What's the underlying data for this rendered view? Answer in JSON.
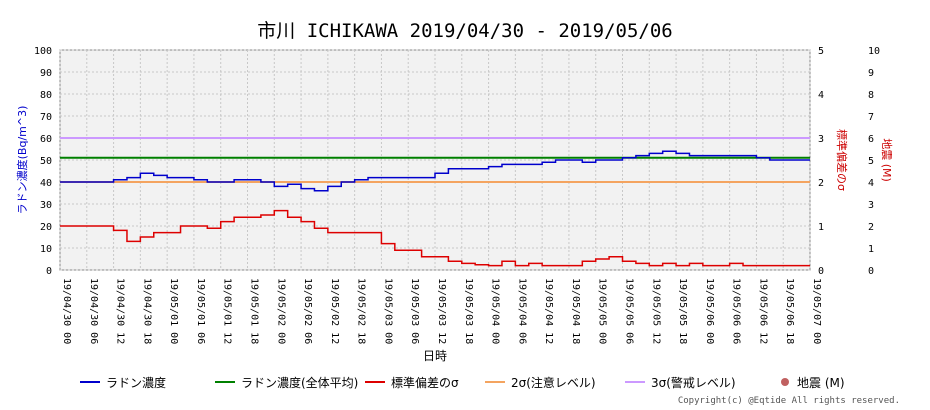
{
  "chart_data": {
    "type": "line",
    "title": "市川 ICHIKAWA 2019/04/30 - 2019/05/06",
    "xlabel": "日時",
    "ylabel_left": "ラドン濃度(Bq/m^3)",
    "ylabel_right1": "標準偏差のσ",
    "ylabel_right2": "地震 (M)",
    "ylim_left": [
      0,
      100
    ],
    "ylim_right1": [
      0,
      5
    ],
    "ylim_right2": [
      0,
      10
    ],
    "yticks_left": [
      "0",
      "10",
      "20",
      "30",
      "40",
      "50",
      "60",
      "70",
      "80",
      "90",
      "100"
    ],
    "yticks_right1": [
      "0",
      "1",
      "2",
      "3",
      "4",
      "5"
    ],
    "yticks_right2": [
      "0",
      "1",
      "2",
      "3",
      "4",
      "5",
      "6",
      "7",
      "8",
      "9",
      "10"
    ],
    "xticks": [
      "19/04/30 00",
      "19/04/30 06",
      "19/04/30 12",
      "19/04/30 18",
      "19/05/01 00",
      "19/05/01 06",
      "19/05/01 12",
      "19/05/01 18",
      "19/05/02 00",
      "19/05/02 06",
      "19/05/02 12",
      "19/05/02 18",
      "19/05/03 00",
      "19/05/03 06",
      "19/05/03 12",
      "19/05/03 18",
      "19/05/04 00",
      "19/05/04 06",
      "19/05/04 12",
      "19/05/04 18",
      "19/05/05 00",
      "19/05/05 06",
      "19/05/05 12",
      "19/05/05 18",
      "19/05/06 00",
      "19/05/06 06",
      "19/05/06 12",
      "19/05/06 18",
      "19/05/07 00"
    ],
    "x_hours": [
      0,
      3,
      6,
      9,
      12,
      15,
      18,
      21,
      24,
      27,
      30,
      33,
      36,
      39,
      42,
      45,
      48,
      51,
      54,
      57,
      60,
      63,
      66,
      69,
      72,
      75,
      78,
      81,
      84,
      87,
      90,
      93,
      96,
      99,
      102,
      105,
      108,
      111,
      114,
      117,
      120,
      123,
      126,
      129,
      132,
      135,
      138,
      141,
      144,
      147,
      150,
      153,
      156,
      159,
      162,
      165
    ],
    "series": [
      {
        "name": "ラドン濃度",
        "color": "#0000cc",
        "axis": "left",
        "values": [
          40,
          40,
          40,
          40,
          41,
          42,
          44,
          43,
          42,
          42,
          41,
          40,
          40,
          41,
          41,
          40,
          38,
          39,
          37,
          36,
          38,
          40,
          41,
          42,
          42,
          42,
          42,
          42,
          44,
          46,
          46,
          46,
          47,
          48,
          48,
          48,
          49,
          50,
          50,
          49,
          50,
          50,
          51,
          52,
          53,
          54,
          53,
          52,
          52,
          52,
          52,
          52,
          51,
          50,
          50,
          50
        ]
      },
      {
        "name": "ラドン濃度(全体平均)",
        "color": "#008000",
        "axis": "left",
        "constant": 51
      },
      {
        "name": "標準偏差のσ",
        "color": "#dd0000",
        "axis": "right1",
        "values": [
          1.0,
          1.0,
          1.0,
          1.0,
          0.9,
          0.65,
          0.75,
          0.85,
          0.85,
          1.0,
          1.0,
          0.95,
          1.1,
          1.2,
          1.2,
          1.25,
          1.35,
          1.2,
          1.1,
          0.95,
          0.85,
          0.85,
          0.85,
          0.85,
          0.6,
          0.45,
          0.45,
          0.3,
          0.3,
          0.2,
          0.15,
          0.12,
          0.1,
          0.2,
          0.1,
          0.15,
          0.1,
          0.1,
          0.1,
          0.2,
          0.25,
          0.3,
          0.2,
          0.15,
          0.1,
          0.15,
          0.1,
          0.15,
          0.1,
          0.1,
          0.15,
          0.1,
          0.1,
          0.1,
          0.1,
          0.1
        ]
      },
      {
        "name": "2σ(注意レベル)",
        "color": "#f4a460",
        "axis": "left",
        "constant": 40
      },
      {
        "name": "3σ(警戒レベル)",
        "color": "#cc99ff",
        "axis": "left",
        "constant": 60
      },
      {
        "name": "地震 (M)",
        "color": "#c06060",
        "axis": "right2",
        "marker": "circle",
        "values": []
      }
    ],
    "grid": true,
    "legend_position": "bottom"
  },
  "legend": [
    {
      "label": "ラドン濃度",
      "color": "#0000cc",
      "kind": "line"
    },
    {
      "label": "ラドン濃度(全体平均)",
      "color": "#008000",
      "kind": "line"
    },
    {
      "label": "標準偏差のσ",
      "color": "#dd0000",
      "kind": "line"
    },
    {
      "label": "2σ(注意レベル)",
      "color": "#f4a460",
      "kind": "line"
    },
    {
      "label": "3σ(警戒レベル)",
      "color": "#cc99ff",
      "kind": "line"
    },
    {
      "label": "地震 (M)",
      "color": "#c06060",
      "kind": "dot"
    }
  ],
  "copyright": "Copyright(c) @Eqtide All rights reserved."
}
